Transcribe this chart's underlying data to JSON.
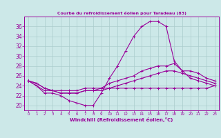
{
  "x": [
    0,
    1,
    2,
    3,
    4,
    5,
    6,
    7,
    8,
    9,
    10,
    11,
    12,
    13,
    14,
    15,
    16,
    17,
    18,
    19,
    20,
    21,
    22,
    23
  ],
  "line1": [
    25.0,
    24.0,
    22.5,
    22.5,
    22.0,
    21.0,
    20.5,
    20.0,
    20.0,
    22.5,
    25.5,
    28.0,
    31.0,
    34.0,
    36.0,
    37.0,
    37.0,
    36.0,
    29.0,
    27.0,
    25.5,
    25.0,
    24.5,
    24.0
  ],
  "line2": [
    25.0,
    24.5,
    23.5,
    23.0,
    22.5,
    22.5,
    22.5,
    23.0,
    23.0,
    23.5,
    24.5,
    25.0,
    25.5,
    26.0,
    27.0,
    27.5,
    28.0,
    28.0,
    28.5,
    27.0,
    27.0,
    26.5,
    25.5,
    25.0
  ],
  "line3": [
    25.0,
    24.5,
    23.5,
    23.0,
    22.5,
    22.5,
    22.5,
    23.0,
    23.0,
    23.0,
    23.5,
    24.0,
    24.5,
    25.0,
    25.5,
    26.0,
    26.5,
    27.0,
    27.0,
    26.5,
    26.0,
    25.5,
    25.0,
    24.5
  ],
  "line4": [
    25.0,
    24.0,
    23.0,
    23.0,
    23.0,
    23.0,
    23.0,
    23.5,
    23.5,
    23.5,
    23.5,
    23.5,
    23.5,
    23.5,
    23.5,
    23.5,
    23.5,
    23.5,
    23.5,
    23.5,
    23.5,
    23.5,
    23.5,
    24.0
  ],
  "line_color": "#990099",
  "bg_color": "#cce8e8",
  "grid_color": "#aacccc",
  "title": "Courbe du refroidissement éolien pour Taradeau (83)",
  "xlabel": "Windchill (Refroidissement éolien,°C)",
  "xlim": [
    -0.5,
    23.5
  ],
  "ylim": [
    19.0,
    38.0
  ],
  "yticks": [
    20,
    22,
    24,
    26,
    28,
    30,
    32,
    34,
    36
  ],
  "xticks": [
    0,
    1,
    2,
    3,
    4,
    5,
    6,
    7,
    8,
    9,
    10,
    11,
    12,
    13,
    14,
    15,
    16,
    17,
    18,
    19,
    20,
    21,
    22,
    23
  ],
  "xticklabels": [
    "0",
    "1",
    "2",
    "3",
    "4",
    "5",
    "6",
    "7",
    "8",
    "9",
    "10",
    "11",
    "12",
    "13",
    "14",
    "15",
    "16",
    "17",
    "18",
    "19",
    "20",
    "21",
    "22",
    "23"
  ]
}
